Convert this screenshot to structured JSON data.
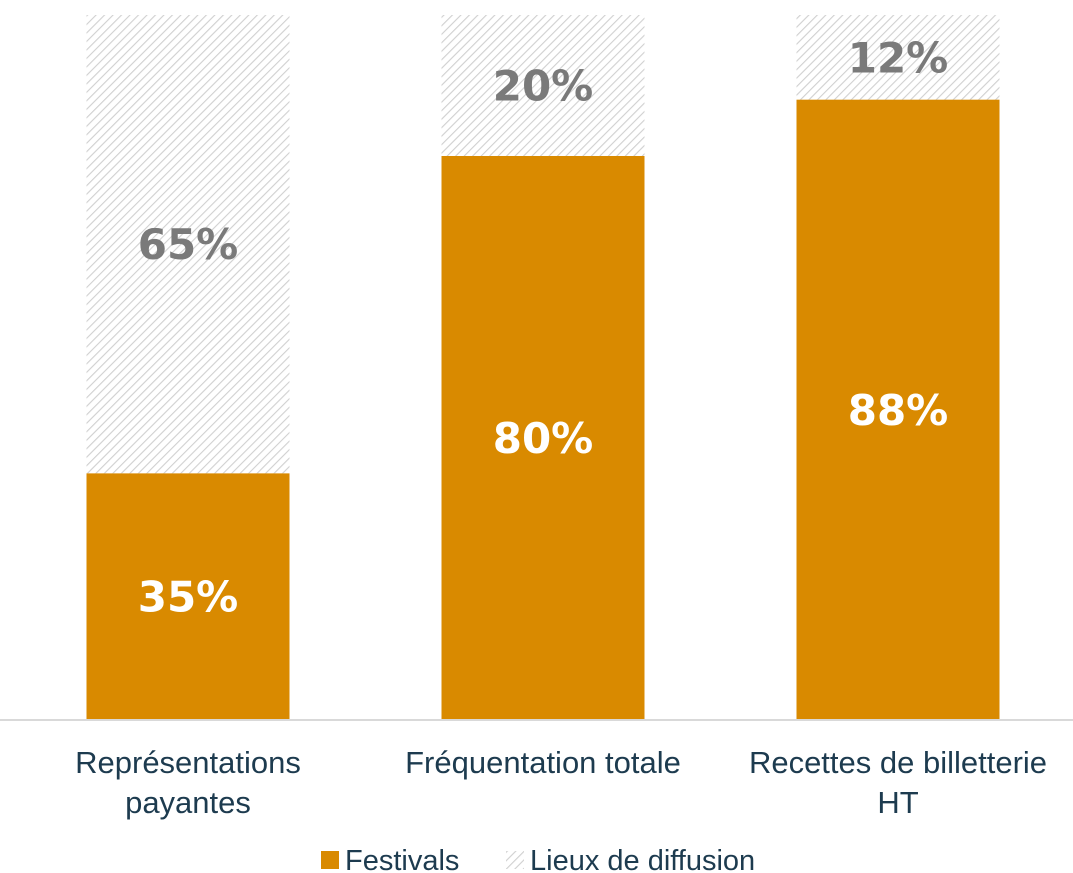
{
  "chart_data": {
    "type": "bar",
    "stacked": true,
    "normalized_percent": true,
    "categories": [
      [
        "Représentations",
        "payantes"
      ],
      [
        "Fréquentation totale"
      ],
      [
        "Recettes de billetterie",
        "HT"
      ]
    ],
    "series": [
      {
        "name": "Festivals",
        "values": [
          35,
          80,
          88
        ],
        "labels": [
          "35%",
          "80%",
          "88%"
        ],
        "color": "#d98a00",
        "label_color": "#ffffff",
        "pattern": "solid"
      },
      {
        "name": "Lieux de diffusion",
        "values": [
          65,
          20,
          12
        ],
        "labels": [
          "65%",
          "20%",
          "12%"
        ],
        "color": "#d4d4d4",
        "label_color": "#7a7a7a",
        "pattern": "diagonal-hatch"
      }
    ],
    "ylim": [
      0,
      100
    ],
    "grid": false,
    "legend": "bottom"
  }
}
